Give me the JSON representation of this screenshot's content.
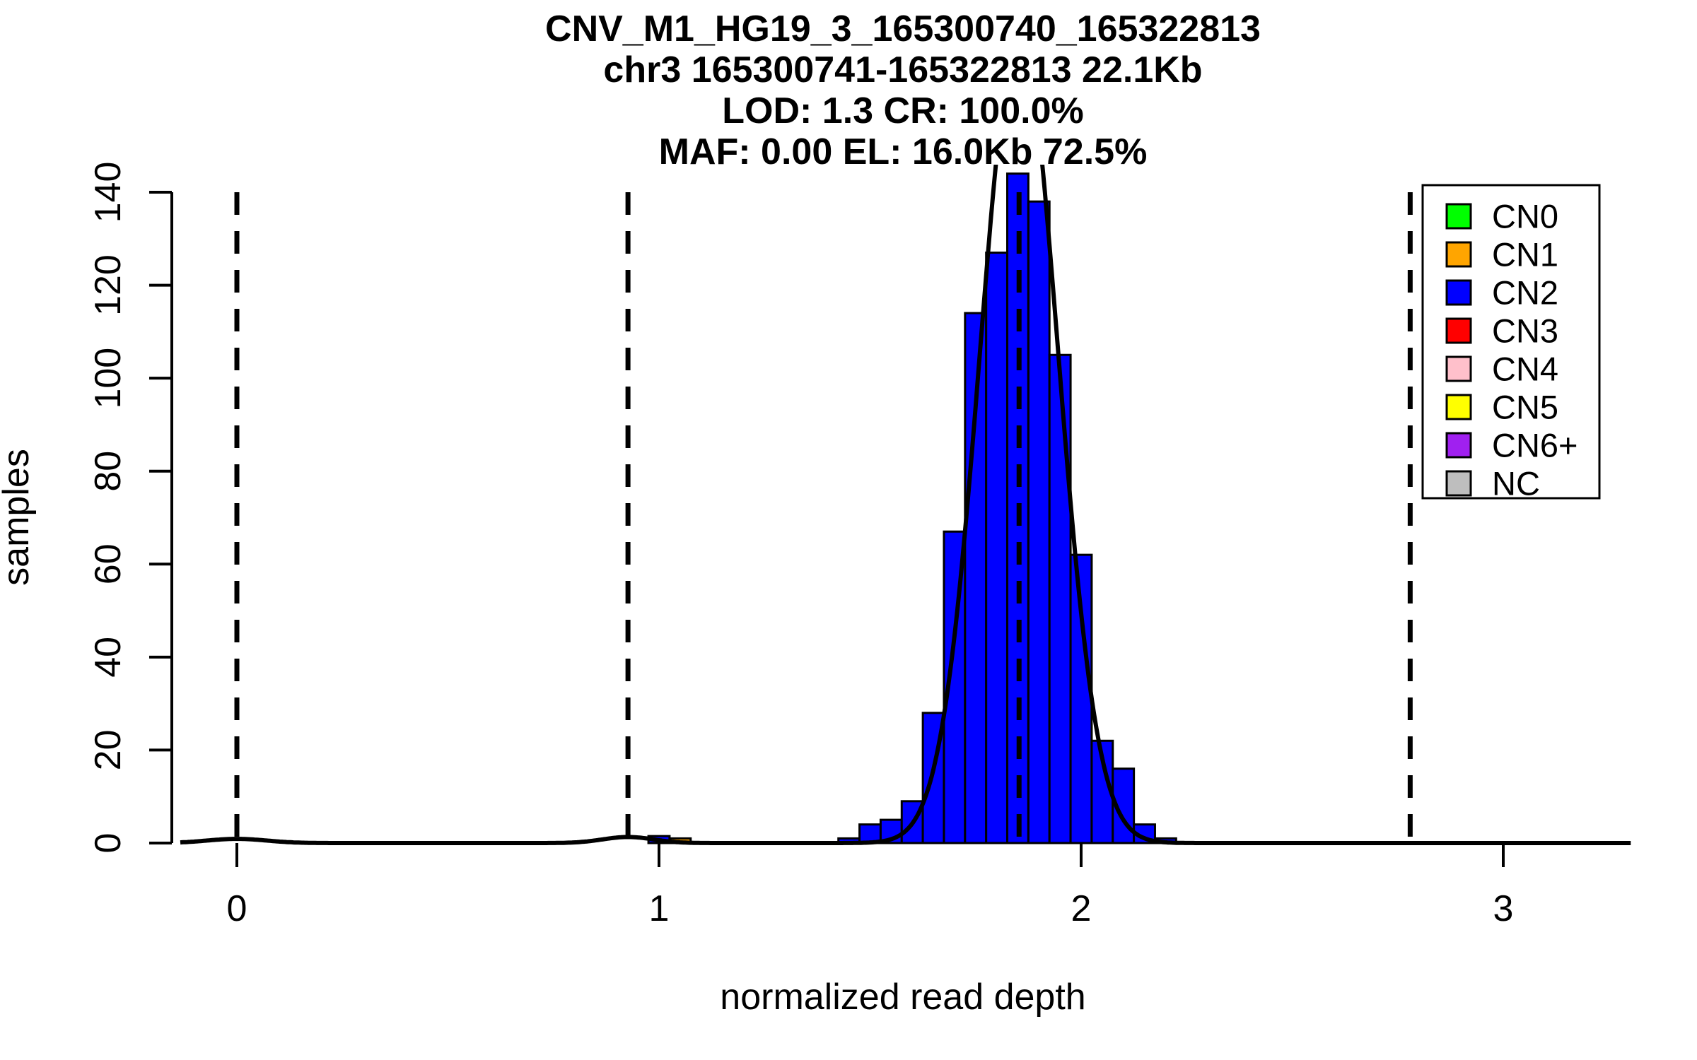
{
  "title": {
    "line1": "CNV_M1_HG19_3_165300740_165322813",
    "line2": "chr3 165300741-165322813 22.1Kb",
    "line3": "LOD: 1.3 CR: 100.0%",
    "line4": "MAF: 0.00 EL: 16.0Kb 72.5%"
  },
  "chart_data": {
    "type": "bar",
    "subtype": "histogram-with-density-fit",
    "xlabel": "normalized read depth",
    "ylabel": "samples",
    "xlim": [
      -0.15,
      3.3
    ],
    "ylim": [
      0,
      140
    ],
    "x_ticks": [
      0,
      1,
      2,
      3
    ],
    "y_ticks": [
      0,
      20,
      40,
      60,
      80,
      100,
      120,
      140
    ],
    "grid": false,
    "bin_width": 0.05,
    "series": [
      {
        "name": "CN2",
        "color": "#0000FF",
        "bin_start": 1.425,
        "counts": [
          1,
          4,
          5,
          9,
          28,
          67,
          114,
          127,
          144,
          138,
          105,
          62,
          22,
          16,
          4,
          1
        ]
      },
      {
        "name": "CN2-low-outlier",
        "color": "#0000FF",
        "bin_start": 0.975,
        "counts": [
          1.5
        ]
      },
      {
        "name": "CN1",
        "color": "#FFA500",
        "bin_start": 1.025,
        "counts": [
          1.0
        ]
      }
    ],
    "fit_curve": {
      "color": "#000000",
      "clip_max": 145.6,
      "components": [
        {
          "mu": 0.0,
          "sigma": 0.07,
          "amp": 0.9
        },
        {
          "mu": 0.9265,
          "sigma": 0.06,
          "amp": 1.3
        },
        {
          "mu": 1.853,
          "sigma": 0.0927,
          "amp": 174
        }
      ]
    },
    "dashed_lines_x": [
      0,
      0.9265,
      1.853,
      2.7795
    ]
  },
  "legend": {
    "entries": [
      {
        "label": "CN0",
        "color": "#00FF00"
      },
      {
        "label": "CN1",
        "color": "#FFA500"
      },
      {
        "label": "CN2",
        "color": "#0000FF"
      },
      {
        "label": "CN3",
        "color": "#FF0000"
      },
      {
        "label": "CN4",
        "color": "#FFC0CB"
      },
      {
        "label": "CN5",
        "color": "#FFFF00"
      },
      {
        "label": "CN6+",
        "color": "#A020F0"
      },
      {
        "label": "NC",
        "color": "#BEBEBE"
      }
    ]
  },
  "colors": {
    "axis": "#000000",
    "dashed_line": "#000000",
    "bar_border": "#000000",
    "background": "#FFFFFF"
  }
}
